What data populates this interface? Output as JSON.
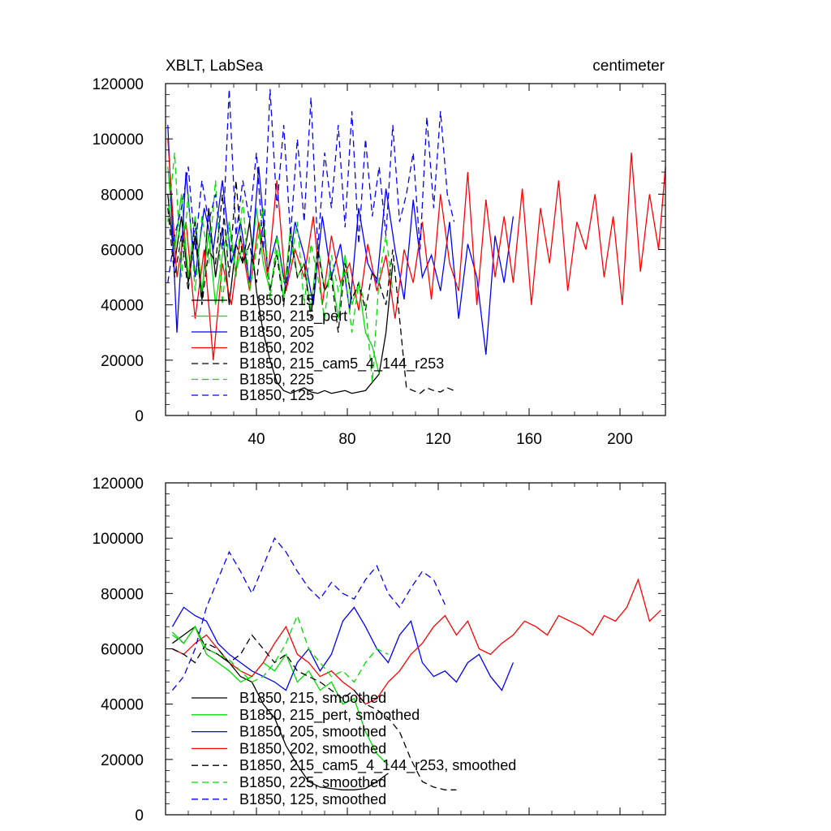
{
  "chart_data": [
    {
      "type": "line",
      "title": "XBLT, LabSea",
      "units": "centimeter",
      "xlim": [
        0,
        220
      ],
      "ylim": [
        0,
        120000
      ],
      "x_ticks": [
        40,
        80,
        120,
        160,
        200
      ],
      "y_ticks": [
        0,
        20000,
        40000,
        60000,
        80000,
        100000,
        120000
      ],
      "legend_position": "bottom-left",
      "series": [
        {
          "name": "B1850, 215",
          "color": "#000000",
          "dash": "solid",
          "x": [
            1,
            4,
            7,
            10,
            13,
            16,
            19,
            22,
            25,
            28,
            31,
            34,
            37,
            40,
            43,
            46,
            49,
            52,
            55,
            58,
            61,
            64,
            67,
            70,
            73,
            76,
            79,
            82,
            85,
            88,
            91,
            94,
            97,
            100
          ],
          "values": [
            80000,
            55000,
            72000,
            48000,
            65000,
            42000,
            75000,
            50000,
            68000,
            40000,
            62000,
            55000,
            70000,
            45000,
            30000,
            20000,
            12000,
            9000,
            8000,
            9000,
            10000,
            8500,
            8000,
            9000,
            8000,
            8500,
            9000,
            8000,
            8500,
            9000,
            12000,
            15000,
            30000,
            55000
          ]
        },
        {
          "name": "B1850, 215_pert",
          "color": "#00dd00",
          "dash": "solid",
          "x": [
            1,
            4,
            7,
            10,
            13,
            16,
            19,
            22,
            25,
            28,
            31,
            34,
            37,
            40,
            43,
            46,
            49,
            52,
            55,
            58,
            61,
            64,
            67,
            70,
            73,
            76,
            79,
            82,
            85,
            88,
            91,
            94
          ],
          "values": [
            90000,
            60000,
            80000,
            50000,
            72000,
            45000,
            66000,
            40000,
            58000,
            70000,
            52000,
            62000,
            48000,
            75000,
            55000,
            45000,
            60000,
            42000,
            68000,
            50000,
            55000,
            38000,
            62000,
            45000,
            52000,
            35000,
            58000,
            40000,
            48000,
            30000,
            25000,
            15000
          ]
        },
        {
          "name": "B1850, 205",
          "color": "#0000ff",
          "dash": "solid",
          "x": [
            1,
            5,
            9,
            13,
            17,
            21,
            25,
            29,
            33,
            37,
            41,
            45,
            49,
            53,
            57,
            61,
            65,
            69,
            73,
            77,
            81,
            85,
            89,
            93,
            97,
            101,
            105,
            109,
            113,
            117,
            121,
            125,
            129,
            133,
            137,
            141,
            145,
            149,
            153
          ],
          "values": [
            105000,
            30000,
            88000,
            50000,
            75000,
            60000,
            85000,
            55000,
            70000,
            48000,
            90000,
            52000,
            65000,
            45000,
            70000,
            58000,
            40000,
            72000,
            50000,
            62000,
            38000,
            75000,
            55000,
            48000,
            82000,
            60000,
            42000,
            78000,
            50000,
            58000,
            45000,
            70000,
            35000,
            62000,
            50000,
            22000,
            65000,
            48000,
            72000
          ]
        },
        {
          "name": "B1850, 202",
          "color": "#ff0000",
          "dash": "solid",
          "x": [
            1,
            5,
            9,
            13,
            17,
            21,
            25,
            29,
            33,
            37,
            41,
            45,
            49,
            53,
            57,
            61,
            65,
            69,
            73,
            77,
            81,
            85,
            89,
            93,
            97,
            101,
            105,
            109,
            113,
            117,
            121,
            125,
            129,
            133,
            137,
            141,
            145,
            149,
            153,
            157,
            161,
            165,
            169,
            173,
            177,
            181,
            185,
            189,
            193,
            197,
            201,
            205,
            209,
            213,
            217,
            220
          ],
          "values": [
            100000,
            50000,
            70000,
            35000,
            60000,
            20000,
            55000,
            40000,
            65000,
            45000,
            70000,
            50000,
            85000,
            45000,
            60000,
            50000,
            72000,
            40000,
            65000,
            48000,
            55000,
            38000,
            62000,
            45000,
            58000,
            35000,
            60000,
            48000,
            70000,
            42000,
            80000,
            55000,
            45000,
            88000,
            40000,
            78000,
            50000,
            72000,
            48000,
            82000,
            40000,
            75000,
            55000,
            85000,
            45000,
            70000,
            60000,
            80000,
            50000,
            72000,
            40000,
            95000,
            52000,
            80000,
            60000,
            90000
          ]
        },
        {
          "name": "B1850, 215_cam5_4_144_r253",
          "color": "#000000",
          "dash": "dashed",
          "x": [
            1,
            4,
            7,
            10,
            13,
            16,
            19,
            22,
            25,
            28,
            31,
            34,
            37,
            40,
            43,
            46,
            49,
            52,
            55,
            58,
            61,
            64,
            67,
            70,
            73,
            76,
            79,
            82,
            85,
            88,
            91,
            94,
            97,
            100,
            103,
            106,
            109,
            112,
            115,
            118,
            121,
            124,
            127
          ],
          "values": [
            75000,
            50000,
            65000,
            45000,
            70000,
            40000,
            60000,
            55000,
            80000,
            50000,
            85000,
            55000,
            62000,
            48000,
            70000,
            45000,
            58000,
            40000,
            65000,
            50000,
            55000,
            35000,
            60000,
            45000,
            50000,
            30000,
            55000,
            42000,
            48000,
            38000,
            52000,
            48000,
            40000,
            60000,
            35000,
            10000,
            9000,
            8000,
            10000,
            9000,
            8500,
            10000,
            9000
          ]
        },
        {
          "name": "B1850, 225",
          "color": "#00dd00",
          "dash": "dashed",
          "x": [
            1,
            4,
            7,
            10,
            13,
            16,
            19,
            22,
            25,
            28,
            31,
            34,
            37,
            40,
            43,
            46,
            49,
            52,
            55,
            58,
            61,
            64,
            67,
            70,
            73,
            76,
            79,
            82,
            85,
            88,
            91,
            94,
            97,
            100
          ],
          "values": [
            70000,
            95000,
            50000,
            80000,
            45000,
            72000,
            55000,
            85000,
            40000,
            68000,
            50000,
            78000,
            45000,
            60000,
            75000,
            42000,
            65000,
            48000,
            55000,
            70000,
            40000,
            62000,
            50000,
            35000,
            58000,
            45000,
            52000,
            30000,
            48000,
            40000,
            12000,
            50000,
            65000,
            45000
          ]
        },
        {
          "name": "B1850, 125",
          "color": "#0000ff",
          "dash": "dashed",
          "x": [
            1,
            4,
            7,
            10,
            13,
            16,
            19,
            22,
            25,
            28,
            31,
            34,
            37,
            40,
            43,
            46,
            49,
            52,
            55,
            58,
            61,
            64,
            67,
            70,
            73,
            76,
            79,
            82,
            85,
            88,
            91,
            94,
            97,
            100,
            103,
            106,
            109,
            112,
            115,
            118,
            121,
            124,
            127
          ],
          "values": [
            48000,
            65000,
            75000,
            90000,
            60000,
            85000,
            70000,
            80000,
            60000,
            118000,
            65000,
            85000,
            70000,
            95000,
            60000,
            118000,
            75000,
            105000,
            65000,
            100000,
            70000,
            115000,
            60000,
            95000,
            75000,
            105000,
            68000,
            110000,
            62000,
            100000,
            72000,
            90000,
            65000,
            105000,
            70000,
            80000,
            95000,
            60000,
            108000,
            75000,
            110000,
            80000,
            70000
          ]
        }
      ]
    },
    {
      "type": "line",
      "xlim": [
        0,
        220
      ],
      "ylim": [
        0,
        120000
      ],
      "y_ticks": [
        0,
        20000,
        40000,
        60000,
        80000,
        100000,
        120000
      ],
      "legend_position": "bottom-left",
      "series": [
        {
          "name": "B1850, 215, smoothed",
          "color": "#000000",
          "dash": "solid",
          "x": [
            3,
            8,
            13,
            18,
            23,
            28,
            33,
            38,
            43,
            48,
            53,
            58,
            63,
            68,
            73,
            78,
            83,
            88,
            93,
            98
          ],
          "values": [
            62000,
            65000,
            68000,
            60000,
            58000,
            55000,
            50000,
            48000,
            40000,
            35000,
            25000,
            18000,
            12000,
            10000,
            9500,
            9000,
            9000,
            9500,
            12000,
            15000
          ]
        },
        {
          "name": "B1850, 215_pert, smoothed",
          "color": "#00dd00",
          "dash": "solid",
          "x": [
            3,
            8,
            13,
            18,
            23,
            28,
            33,
            38,
            43,
            48,
            53,
            58,
            63,
            68,
            73,
            78,
            83,
            88,
            93,
            98
          ],
          "values": [
            66000,
            62000,
            68000,
            58000,
            55000,
            52000,
            48000,
            50000,
            55000,
            52000,
            58000,
            48000,
            52000,
            45000,
            48000,
            40000,
            42000,
            30000,
            22000,
            18000
          ]
        },
        {
          "name": "B1850, 205, smoothed",
          "color": "#0000ff",
          "dash": "solid",
          "x": [
            3,
            8,
            13,
            18,
            23,
            28,
            33,
            38,
            43,
            48,
            53,
            58,
            63,
            68,
            73,
            78,
            83,
            88,
            93,
            98,
            103,
            108,
            113,
            118,
            123,
            128,
            133,
            138,
            143,
            148,
            153
          ],
          "values": [
            68000,
            75000,
            72000,
            70000,
            62000,
            58000,
            55000,
            52000,
            50000,
            48000,
            45000,
            55000,
            60000,
            52000,
            58000,
            70000,
            75000,
            68000,
            60000,
            55000,
            65000,
            70000,
            55000,
            50000,
            52000,
            48000,
            55000,
            58000,
            50000,
            45000,
            55000
          ]
        },
        {
          "name": "B1850, 202, smoothed",
          "color": "#ff0000",
          "dash": "solid",
          "x": [
            3,
            8,
            13,
            18,
            23,
            28,
            33,
            38,
            43,
            48,
            53,
            58,
            63,
            68,
            73,
            78,
            83,
            88,
            93,
            98,
            103,
            108,
            113,
            118,
            123,
            128,
            133,
            138,
            143,
            148,
            153,
            158,
            163,
            168,
            173,
            178,
            183,
            188,
            193,
            198,
            203,
            208,
            213,
            218
          ],
          "values": [
            60000,
            58000,
            62000,
            65000,
            60000,
            55000,
            52000,
            50000,
            55000,
            62000,
            68000,
            58000,
            55000,
            50000,
            52000,
            48000,
            45000,
            40000,
            42000,
            48000,
            52000,
            58000,
            62000,
            68000,
            72000,
            65000,
            70000,
            60000,
            58000,
            62000,
            65000,
            70000,
            68000,
            65000,
            72000,
            70000,
            68000,
            65000,
            72000,
            70000,
            75000,
            85000,
            70000,
            74000
          ]
        },
        {
          "name": "B1850, 215_cam5_4_144_r253, smoothed",
          "color": "#000000",
          "dash": "dashed",
          "x": [
            3,
            8,
            13,
            18,
            23,
            28,
            33,
            38,
            43,
            48,
            53,
            58,
            63,
            68,
            73,
            78,
            83,
            88,
            93,
            98,
            103,
            108,
            113,
            118,
            123,
            128
          ],
          "values": [
            60000,
            58000,
            55000,
            62000,
            60000,
            55000,
            58000,
            65000,
            60000,
            55000,
            58000,
            52000,
            50000,
            48000,
            45000,
            42000,
            45000,
            40000,
            38000,
            35000,
            30000,
            20000,
            12000,
            10000,
            9000,
            9000
          ]
        },
        {
          "name": "B1850, 225, smoothed",
          "color": "#00dd00",
          "dash": "dashed",
          "x": [
            3,
            8,
            13,
            18,
            23,
            28,
            33,
            38,
            43,
            48,
            53,
            58,
            63,
            68,
            73,
            78,
            83,
            88,
            93,
            98
          ],
          "values": [
            65000,
            62000,
            68000,
            60000,
            58000,
            56000,
            52000,
            48000,
            50000,
            55000,
            62000,
            72000,
            60000,
            55000,
            50000,
            52000,
            48000,
            55000,
            60000,
            58000
          ]
        },
        {
          "name": "B1850, 125, smoothed",
          "color": "#0000ff",
          "dash": "dashed",
          "x": [
            3,
            8,
            13,
            18,
            23,
            28,
            33,
            38,
            43,
            48,
            53,
            58,
            63,
            68,
            73,
            78,
            83,
            88,
            93,
            98,
            103,
            108,
            113,
            118,
            123
          ],
          "values": [
            45000,
            50000,
            60000,
            75000,
            85000,
            95000,
            88000,
            80000,
            90000,
            100000,
            95000,
            88000,
            82000,
            78000,
            84000,
            80000,
            78000,
            85000,
            90000,
            80000,
            75000,
            82000,
            88000,
            85000,
            76000
          ]
        }
      ]
    }
  ]
}
